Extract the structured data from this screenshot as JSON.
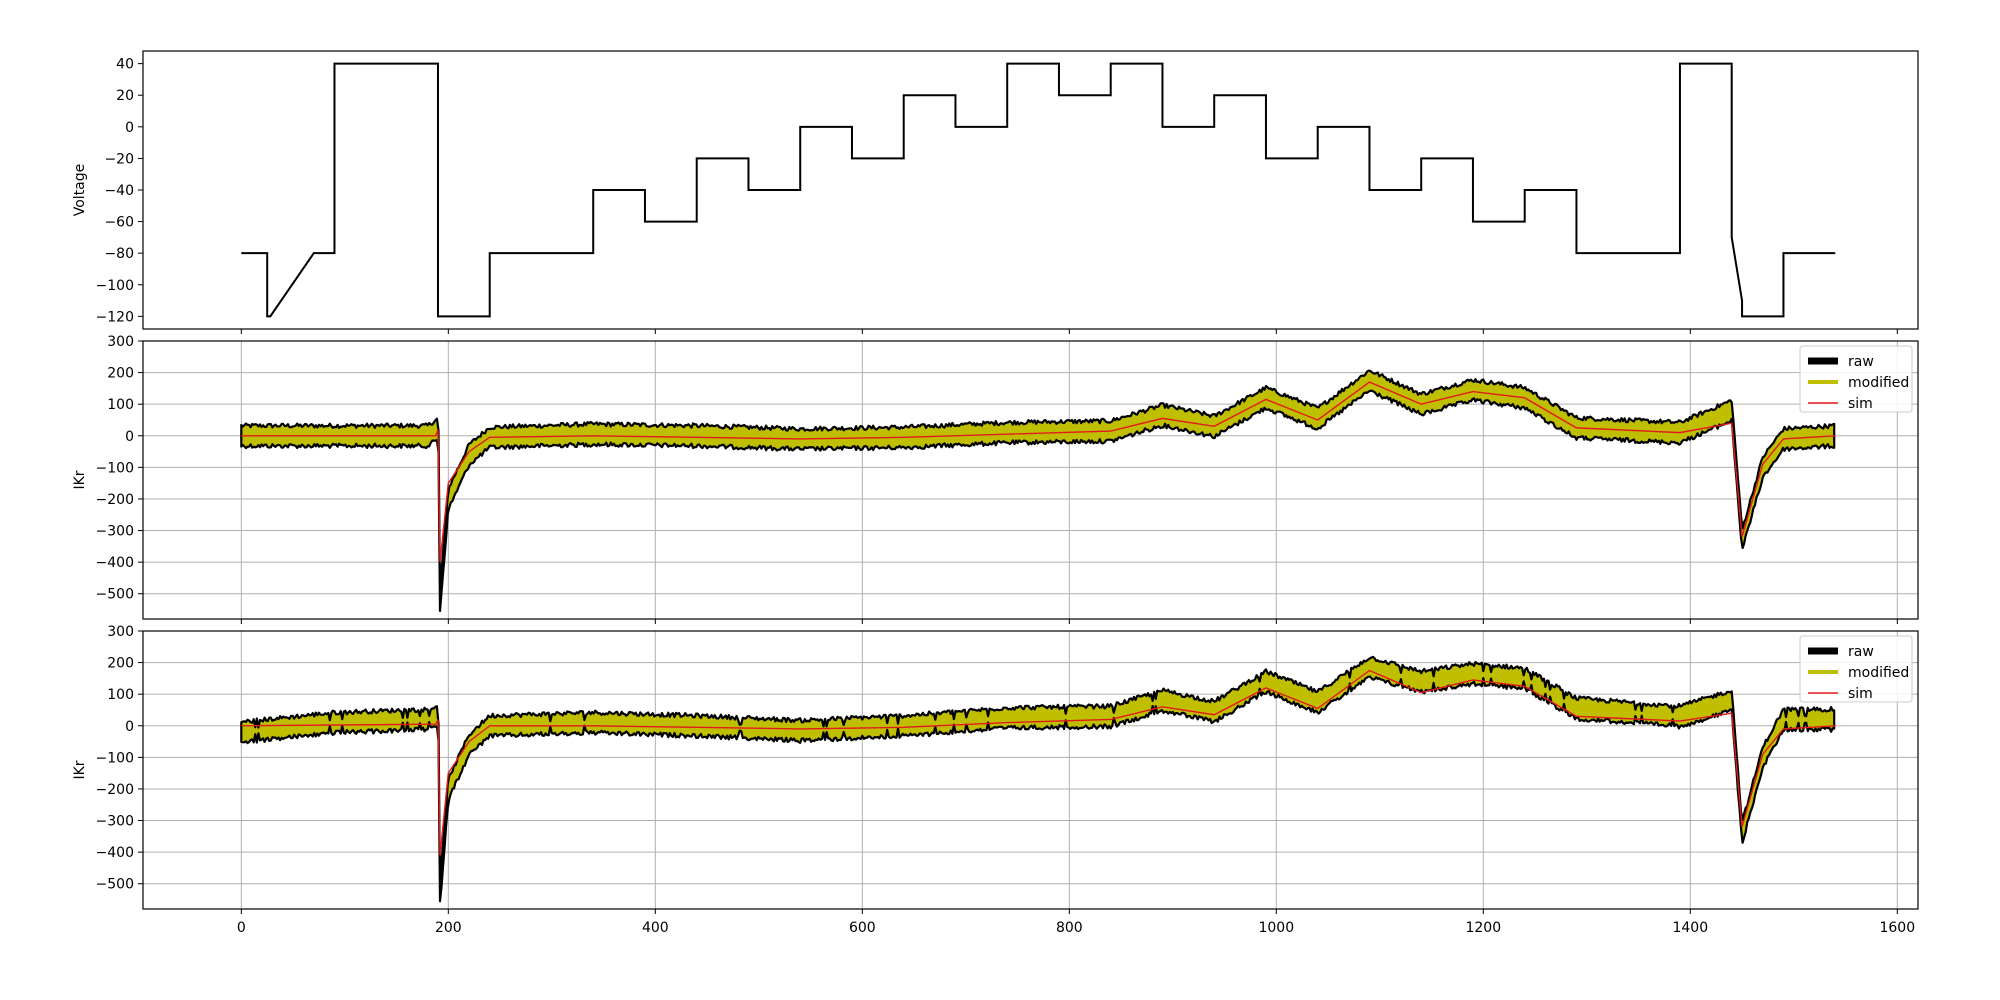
{
  "chart_data": [
    {
      "type": "line",
      "ylabel": "Voltage",
      "xlim": [
        -95,
        1620
      ],
      "ylim": [
        -128,
        48
      ],
      "yticks": [
        40,
        20,
        0,
        -20,
        -40,
        -60,
        -80,
        -100,
        -120
      ],
      "grid": false,
      "series": [
        {
          "color": "#000000",
          "x": [
            0,
            25,
            25,
            28,
            70,
            90,
            90,
            190,
            190,
            240,
            240,
            340,
            340,
            390,
            390,
            440,
            440,
            490,
            490,
            540,
            540,
            590,
            590,
            640,
            640,
            690,
            690,
            740,
            740,
            790,
            790,
            840,
            840,
            890,
            890,
            940,
            940,
            990,
            990,
            1040,
            1040,
            1090,
            1090,
            1140,
            1140,
            1190,
            1190,
            1240,
            1240,
            1290,
            1290,
            1390,
            1390,
            1440,
            1440,
            1450,
            1450,
            1490,
            1490,
            1540
          ],
          "y": [
            -80,
            -80,
            -120,
            -120,
            -80,
            -80,
            40,
            40,
            -120,
            -120,
            -80,
            -80,
            -40,
            -40,
            -60,
            -60,
            -20,
            -20,
            -40,
            -40,
            0,
            0,
            -20,
            -20,
            20,
            20,
            0,
            0,
            40,
            40,
            20,
            20,
            40,
            40,
            0,
            0,
            20,
            20,
            -20,
            -20,
            0,
            0,
            -40,
            -40,
            -20,
            -20,
            -60,
            -60,
            -40,
            -40,
            -80,
            -80,
            40,
            40,
            -70,
            -110,
            -120,
            -120,
            -80,
            -80
          ]
        }
      ]
    },
    {
      "type": "line",
      "ylabel": "IKr",
      "xlim": [
        -95,
        1620
      ],
      "ylim": [
        -580,
        300
      ],
      "yticks": [
        300,
        200,
        100,
        0,
        -100,
        -200,
        -300,
        -400,
        -500
      ],
      "xticks": [
        0,
        200,
        400,
        600,
        800,
        1000,
        1200,
        1400,
        1600
      ],
      "grid": true,
      "legend": {
        "position": "top-right",
        "items": [
          "raw",
          "modified",
          "sim"
        ]
      },
      "series": [
        {
          "name": "raw",
          "color": "#000000",
          "x": [
            0,
            90,
            180,
            189,
            190,
            192,
            200,
            220,
            240,
            340,
            440,
            540,
            640,
            740,
            840,
            890,
            940,
            990,
            1040,
            1090,
            1140,
            1190,
            1240,
            1290,
            1390,
            1440,
            1450,
            1470,
            1490,
            1540
          ],
          "y": [
            0,
            0,
            0,
            20,
            150,
            -520,
            -200,
            -60,
            -5,
            5,
            0,
            -10,
            -5,
            10,
            15,
            65,
            30,
            120,
            55,
            175,
            100,
            145,
            120,
            25,
            10,
            80,
            -330,
            -100,
            -10,
            0
          ]
        },
        {
          "name": "modified",
          "color": "#bfbf00",
          "x": [
            0,
            90,
            180,
            189,
            190,
            192,
            200,
            220,
            240,
            340,
            440,
            540,
            640,
            740,
            840,
            890,
            940,
            990,
            1040,
            1090,
            1140,
            1190,
            1240,
            1290,
            1390,
            1440,
            1450,
            1470,
            1490,
            1540
          ],
          "y": [
            0,
            0,
            0,
            20,
            150,
            -520,
            -200,
            -60,
            -5,
            5,
            0,
            -10,
            -5,
            10,
            15,
            65,
            30,
            120,
            55,
            175,
            100,
            145,
            120,
            25,
            10,
            80,
            -330,
            -100,
            -10,
            0
          ]
        },
        {
          "name": "sim",
          "color": "#e31a1c",
          "x": [
            0,
            188,
            190,
            192,
            200,
            220,
            240,
            340,
            440,
            540,
            640,
            740,
            840,
            890,
            940,
            990,
            1040,
            1090,
            1140,
            1190,
            1240,
            1290,
            1390,
            1440,
            1450,
            1470,
            1490,
            1540
          ],
          "y": [
            0,
            0,
            20,
            -400,
            -150,
            -50,
            -5,
            0,
            -5,
            -10,
            -5,
            5,
            15,
            55,
            30,
            115,
            50,
            170,
            100,
            140,
            120,
            25,
            10,
            40,
            -320,
            -90,
            -10,
            0
          ]
        }
      ]
    },
    {
      "type": "line",
      "ylabel": "IKr",
      "xlabel": "",
      "xlim": [
        -95,
        1620
      ],
      "ylim": [
        -580,
        300
      ],
      "yticks": [
        300,
        200,
        100,
        0,
        -100,
        -200,
        -300,
        -400,
        -500
      ],
      "xticks": [
        0,
        200,
        400,
        600,
        800,
        1000,
        1200,
        1400,
        1600
      ],
      "grid": true,
      "legend": {
        "position": "top-right",
        "items": [
          "raw",
          "modified",
          "sim"
        ]
      },
      "series": [
        {
          "name": "raw",
          "color": "#000000",
          "x": [
            0,
            90,
            180,
            189,
            190,
            192,
            200,
            220,
            240,
            340,
            440,
            540,
            640,
            740,
            840,
            890,
            940,
            990,
            1040,
            1090,
            1140,
            1190,
            1240,
            1290,
            1390,
            1440,
            1450,
            1470,
            1490,
            1540
          ],
          "y": [
            -20,
            10,
            20,
            30,
            150,
            -530,
            -200,
            -60,
            0,
            10,
            0,
            -15,
            0,
            25,
            30,
            80,
            45,
            140,
            75,
            185,
            140,
            165,
            150,
            55,
            30,
            80,
            -340,
            -100,
            20,
            20
          ]
        },
        {
          "name": "modified",
          "color": "#bfbf00",
          "x": [
            0,
            90,
            180,
            189,
            190,
            192,
            200,
            220,
            240,
            340,
            440,
            540,
            640,
            740,
            840,
            890,
            940,
            990,
            1040,
            1090,
            1140,
            1190,
            1240,
            1290,
            1390,
            1440,
            1450,
            1470,
            1490,
            1540
          ],
          "y": [
            -20,
            10,
            20,
            30,
            150,
            -530,
            -200,
            -60,
            0,
            10,
            0,
            -15,
            0,
            25,
            30,
            80,
            45,
            140,
            75,
            185,
            140,
            165,
            150,
            55,
            30,
            80,
            -340,
            -100,
            20,
            20
          ]
        },
        {
          "name": "sim",
          "color": "#e31a1c",
          "x": [
            0,
            188,
            190,
            192,
            200,
            220,
            240,
            340,
            440,
            540,
            640,
            740,
            840,
            890,
            940,
            990,
            1040,
            1090,
            1140,
            1190,
            1240,
            1290,
            1390,
            1440,
            1450,
            1470,
            1490,
            1540
          ],
          "y": [
            0,
            5,
            20,
            -410,
            -150,
            -50,
            0,
            0,
            -5,
            -10,
            -5,
            10,
            20,
            60,
            35,
            120,
            55,
            175,
            105,
            145,
            125,
            30,
            15,
            40,
            -320,
            -90,
            -10,
            0
          ]
        }
      ]
    }
  ]
}
